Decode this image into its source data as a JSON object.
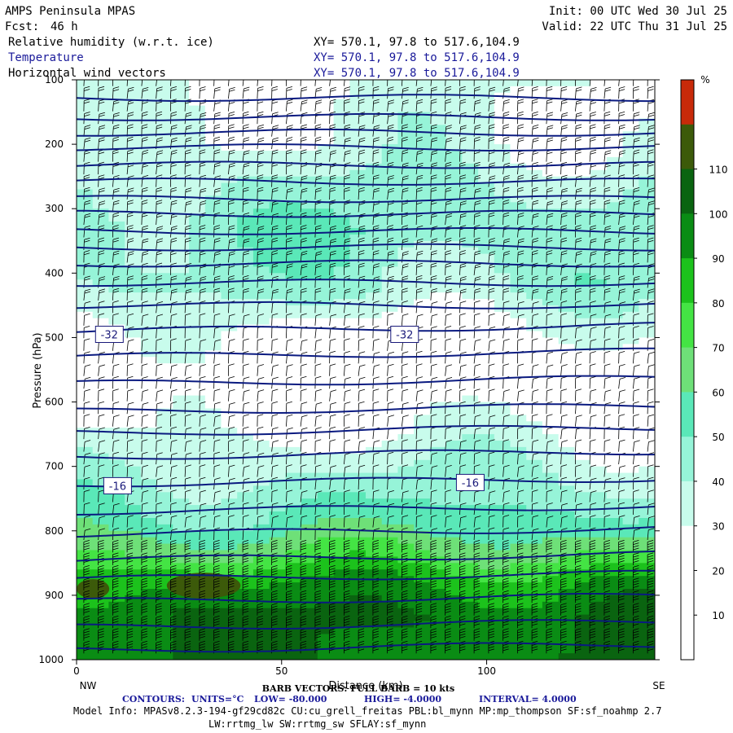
{
  "header": {
    "model": "AMPS Peninsula MPAS",
    "fcst_label": "Fcst:",
    "fcst_value": "46 h",
    "init": "Init: 00 UTC Wed 30 Jul 25",
    "valid": "Valid: 22 UTC Thu 31 Jul 25",
    "fields": [
      {
        "name": "Relative humidity (w.r.t. ice)",
        "xy": "XY= 570.1, 97.8 to 517.6,104.9",
        "color": "#000000"
      },
      {
        "name": "Temperature",
        "xy": "XY= 570.1, 97.8 to 517.6,104.9",
        "color": "#1a1a9a"
      },
      {
        "name": "Horizontal wind vectors",
        "xy": "XY= 570.1, 97.8 to 517.6,104.9",
        "color": "#000000"
      }
    ]
  },
  "footer": {
    "barb_note": "BARB VECTORS: FULL BARB = 10 kts",
    "contours": {
      "label": "CONTOURS:",
      "units": "UNITS=°C",
      "low": "LOW= -80.000",
      "high": "HIGH= -4.0000",
      "interval": "INTERVAL= 4.0000"
    },
    "model_info_1": "Model Info: MPASv8.2.3-194-gf29cd82c CU:cu_grell_freitas PBL:bl_mynn MP:mp_thompson SF:sf_noahmp 2.7",
    "model_info_2": "LW:rrtmg_lw SW:rrtmg_sw SFLAY:sf_mynn"
  },
  "chart_data": {
    "type": "heatmap",
    "title": "",
    "xlabel": "Distance (km)",
    "ylabel": "Pressure (hPa)",
    "xlim": [
      0,
      141
    ],
    "ylim": [
      100,
      1000
    ],
    "x_ticks": [
      0,
      50,
      100
    ],
    "y_ticks": [
      100,
      200,
      300,
      400,
      500,
      600,
      700,
      800,
      900,
      1000
    ],
    "x_end_labels": {
      "left": "NW",
      "right": "SE"
    },
    "colorbar": {
      "unit": "%",
      "levels": [
        0,
        10,
        20,
        30,
        40,
        50,
        60,
        70,
        80,
        90,
        100,
        110,
        120
      ],
      "tick_labels": [
        10,
        20,
        30,
        40,
        50,
        60,
        70,
        80,
        90,
        100,
        110
      ],
      "colors": [
        "#ffffff",
        "#ffffff",
        "#ffffff",
        "#c8fcec",
        "#96f4d8",
        "#5ae8b8",
        "#6ee078",
        "#44e444",
        "#1cc21c",
        "#0a8c14",
        "#0a6410",
        "#3c5a0a",
        "#c82a0a"
      ]
    },
    "rh_profile_hpa": [
      {
        "p": 120,
        "rh": 30
      },
      {
        "p": 200,
        "rh": 32
      },
      {
        "p": 260,
        "rh": 40
      },
      {
        "p": 330,
        "rh": 48
      },
      {
        "p": 420,
        "rh": 42
      },
      {
        "p": 480,
        "rh": 28
      },
      {
        "p": 560,
        "rh": 18
      },
      {
        "p": 640,
        "rh": 28
      },
      {
        "p": 720,
        "rh": 42
      },
      {
        "p": 790,
        "rh": 55
      },
      {
        "p": 840,
        "rh": 72
      },
      {
        "p": 880,
        "rh": 90
      },
      {
        "p": 930,
        "rh": 100
      },
      {
        "p": 1000,
        "rh": 100
      }
    ],
    "high_rh_patches": [
      {
        "x": [
          0,
          8
        ],
        "p": [
          875,
          905
        ],
        "rh": 115
      },
      {
        "x": [
          22,
          40
        ],
        "p": [
          865,
          905
        ],
        "rh": 115
      }
    ],
    "temperature_contours_hpa": [
      128,
      158,
      182,
      205,
      232,
      258,
      285,
      308,
      335,
      360,
      385,
      415,
      450,
      490,
      530,
      572,
      615,
      648,
      685,
      727,
      770,
      805,
      845,
      875,
      910,
      950,
      985
    ],
    "contour_labels": [
      {
        "text": "-32",
        "x": 8,
        "p": 495
      },
      {
        "text": "-32",
        "x": 80,
        "p": 495
      },
      {
        "text": "-16",
        "x": 10,
        "p": 730
      },
      {
        "text": "-16",
        "x": 96,
        "p": 725
      }
    ],
    "wind_barbs": {
      "unit": "kts",
      "full_barb_kts": 10
    }
  }
}
